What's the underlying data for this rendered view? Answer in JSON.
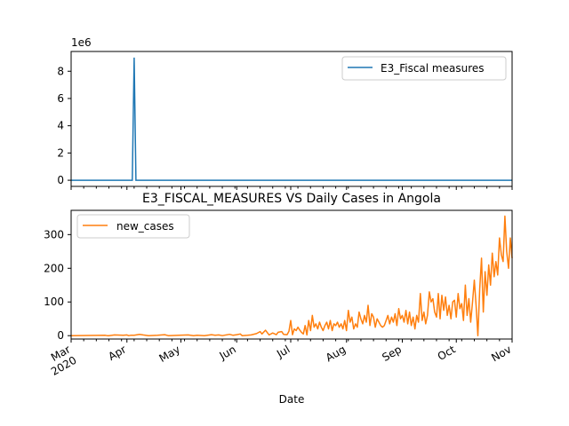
{
  "chart_data": [
    {
      "type": "line",
      "title": "",
      "offset_text": "1e6",
      "ylim": [
        -0.45,
        9.45
      ],
      "yticks": [
        0,
        2,
        4,
        6,
        8
      ],
      "grid": false,
      "legend_position": "upper right",
      "series": [
        {
          "name": "E3_Fiscal measures",
          "color": "#1f77b4",
          "points": [
            [
              "2020-03-01",
              0
            ],
            [
              "2020-04-04",
              0
            ],
            [
              "2020-04-05",
              9
            ],
            [
              "2020-04-06",
              0
            ],
            [
              "2020-10-21",
              0
            ],
            [
              "2020-10-23",
              0
            ],
            [
              "2020-11-01",
              0
            ]
          ]
        }
      ]
    },
    {
      "type": "line",
      "title": "E3_FISCAL_MEASURES VS Daily Cases in Angola",
      "xlabel": "Date",
      "ylim": [
        -10,
        372
      ],
      "yticks": [
        0,
        100,
        200,
        300
      ],
      "xlim": [
        "2020-03-01",
        "2020-11-01"
      ],
      "x_tick_labels": [
        "Mar\n2020",
        "Apr",
        "May",
        "Jun",
        "Jul",
        "Aug",
        "Sep",
        "Oct",
        "Nov"
      ],
      "grid": false,
      "legend_position": "upper left",
      "series": [
        {
          "name": "new_cases",
          "color": "#ff7f0e",
          "points": [
            [
              "2020-03-01",
              0
            ],
            [
              "2020-03-20",
              1
            ],
            [
              "2020-03-21",
              0
            ],
            [
              "2020-03-22",
              0
            ],
            [
              "2020-03-25",
              2
            ],
            [
              "2020-03-30",
              1
            ],
            [
              "2020-04-01",
              2
            ],
            [
              "2020-04-02",
              0
            ],
            [
              "2020-04-03",
              1
            ],
            [
              "2020-04-05",
              1
            ],
            [
              "2020-04-08",
              4
            ],
            [
              "2020-04-10",
              2
            ],
            [
              "2020-04-13",
              0
            ],
            [
              "2020-04-18",
              1
            ],
            [
              "2020-04-22",
              3
            ],
            [
              "2020-04-24",
              0
            ],
            [
              "2020-04-30",
              1
            ],
            [
              "2020-05-05",
              2
            ],
            [
              "2020-05-08",
              0
            ],
            [
              "2020-05-10",
              1
            ],
            [
              "2020-05-14",
              0
            ],
            [
              "2020-05-18",
              3
            ],
            [
              "2020-05-20",
              1
            ],
            [
              "2020-05-22",
              2
            ],
            [
              "2020-05-24",
              0
            ],
            [
              "2020-05-28",
              4
            ],
            [
              "2020-05-30",
              1
            ],
            [
              "2020-06-01",
              3
            ],
            [
              "2020-06-03",
              5
            ],
            [
              "2020-06-04",
              0
            ],
            [
              "2020-06-07",
              1
            ],
            [
              "2020-06-09",
              2
            ],
            [
              "2020-06-12",
              6
            ],
            [
              "2020-06-14",
              12
            ],
            [
              "2020-06-15",
              5
            ],
            [
              "2020-06-17",
              16
            ],
            [
              "2020-06-19",
              2
            ],
            [
              "2020-06-21",
              8
            ],
            [
              "2020-06-23",
              3
            ],
            [
              "2020-06-24",
              10
            ],
            [
              "2020-06-26",
              12
            ],
            [
              "2020-06-27",
              4
            ],
            [
              "2020-06-29",
              3
            ],
            [
              "2020-06-30",
              13
            ],
            [
              "2020-07-01",
              45
            ],
            [
              "2020-07-02",
              3
            ],
            [
              "2020-07-03",
              20
            ],
            [
              "2020-07-04",
              15
            ],
            [
              "2020-07-05",
              25
            ],
            [
              "2020-07-06",
              17
            ],
            [
              "2020-07-07",
              10
            ],
            [
              "2020-07-08",
              5
            ],
            [
              "2020-07-09",
              30
            ],
            [
              "2020-07-10",
              2
            ],
            [
              "2020-07-11",
              45
            ],
            [
              "2020-07-12",
              15
            ],
            [
              "2020-07-13",
              60
            ],
            [
              "2020-07-14",
              25
            ],
            [
              "2020-07-15",
              35
            ],
            [
              "2020-07-16",
              20
            ],
            [
              "2020-07-17",
              40
            ],
            [
              "2020-07-18",
              25
            ],
            [
              "2020-07-19",
              15
            ],
            [
              "2020-07-20",
              30
            ],
            [
              "2020-07-21",
              40
            ],
            [
              "2020-07-22",
              20
            ],
            [
              "2020-07-23",
              45
            ],
            [
              "2020-07-24",
              15
            ],
            [
              "2020-07-25",
              35
            ],
            [
              "2020-07-26",
              30
            ],
            [
              "2020-07-27",
              40
            ],
            [
              "2020-07-28",
              25
            ],
            [
              "2020-07-29",
              35
            ],
            [
              "2020-07-30",
              20
            ],
            [
              "2020-07-31",
              45
            ],
            [
              "2020-08-01",
              15
            ],
            [
              "2020-08-02",
              75
            ],
            [
              "2020-08-03",
              40
            ],
            [
              "2020-08-04",
              55
            ],
            [
              "2020-08-05",
              20
            ],
            [
              "2020-08-06",
              35
            ],
            [
              "2020-08-07",
              25
            ],
            [
              "2020-08-08",
              70
            ],
            [
              "2020-08-09",
              50
            ],
            [
              "2020-08-10",
              35
            ],
            [
              "2020-08-11",
              60
            ],
            [
              "2020-08-12",
              40
            ],
            [
              "2020-08-13",
              90
            ],
            [
              "2020-08-14",
              30
            ],
            [
              "2020-08-15",
              65
            ],
            [
              "2020-08-16",
              55
            ],
            [
              "2020-08-17",
              25
            ],
            [
              "2020-08-18",
              50
            ],
            [
              "2020-08-19",
              40
            ],
            [
              "2020-08-20",
              30
            ],
            [
              "2020-08-21",
              25
            ],
            [
              "2020-08-22",
              30
            ],
            [
              "2020-08-23",
              45
            ],
            [
              "2020-08-24",
              60
            ],
            [
              "2020-08-25",
              35
            ],
            [
              "2020-08-26",
              55
            ],
            [
              "2020-08-27",
              40
            ],
            [
              "2020-08-28",
              65
            ],
            [
              "2020-08-29",
              30
            ],
            [
              "2020-08-30",
              80
            ],
            [
              "2020-08-31",
              50
            ],
            [
              "2020-09-01",
              60
            ],
            [
              "2020-09-02",
              40
            ],
            [
              "2020-09-03",
              75
            ],
            [
              "2020-09-04",
              35
            ],
            [
              "2020-09-05",
              70
            ],
            [
              "2020-09-06",
              30
            ],
            [
              "2020-09-07",
              55
            ],
            [
              "2020-09-08",
              20
            ],
            [
              "2020-09-09",
              60
            ],
            [
              "2020-09-10",
              40
            ],
            [
              "2020-09-11",
              125
            ],
            [
              "2020-09-12",
              45
            ],
            [
              "2020-09-13",
              70
            ],
            [
              "2020-09-14",
              35
            ],
            [
              "2020-09-15",
              60
            ],
            [
              "2020-09-16",
              130
            ],
            [
              "2020-09-17",
              100
            ],
            [
              "2020-09-18",
              110
            ],
            [
              "2020-09-19",
              70
            ],
            [
              "2020-09-20",
              55
            ],
            [
              "2020-09-21",
              125
            ],
            [
              "2020-09-22",
              50
            ],
            [
              "2020-09-23",
              120
            ],
            [
              "2020-09-24",
              75
            ],
            [
              "2020-09-25",
              115
            ],
            [
              "2020-09-26",
              60
            ],
            [
              "2020-09-27",
              90
            ],
            [
              "2020-09-28",
              50
            ],
            [
              "2020-09-29",
              100
            ],
            [
              "2020-09-30",
              105
            ],
            [
              "2020-10-01",
              55
            ],
            [
              "2020-10-02",
              125
            ],
            [
              "2020-10-03",
              80
            ],
            [
              "2020-10-04",
              95
            ],
            [
              "2020-10-05",
              45
            ],
            [
              "2020-10-06",
              150
            ],
            [
              "2020-10-07",
              60
            ],
            [
              "2020-10-08",
              110
            ],
            [
              "2020-10-09",
              40
            ],
            [
              "2020-10-10",
              100
            ],
            [
              "2020-10-11",
              165
            ],
            [
              "2020-10-12",
              90
            ],
            [
              "2020-10-13",
              0
            ],
            [
              "2020-10-14",
              140
            ],
            [
              "2020-10-15",
              230
            ],
            [
              "2020-10-16",
              70
            ],
            [
              "2020-10-17",
              190
            ],
            [
              "2020-10-18",
              120
            ],
            [
              "2020-10-19",
              210
            ],
            [
              "2020-10-20",
              150
            ],
            [
              "2020-10-21",
              245
            ],
            [
              "2020-10-22",
              175
            ],
            [
              "2020-10-23",
              220
            ],
            [
              "2020-10-24",
              180
            ],
            [
              "2020-10-25",
              290
            ],
            [
              "2020-10-26",
              240
            ],
            [
              "2020-10-27",
              220
            ],
            [
              "2020-10-28",
              355
            ],
            [
              "2020-10-29",
              250
            ],
            [
              "2020-10-30",
              200
            ],
            [
              "2020-10-31",
              290
            ],
            [
              "2020-11-01",
              230
            ]
          ]
        }
      ]
    }
  ]
}
